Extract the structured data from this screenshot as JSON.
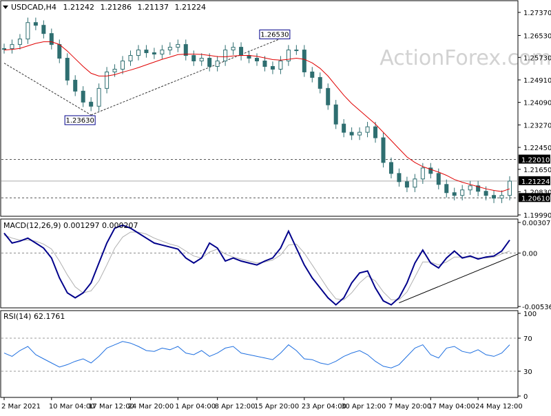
{
  "header": {
    "symbol_tf": "USDCAD,H4",
    "open": "1.21242",
    "high": "1.21286",
    "low": "1.21137",
    "close": "1.21224"
  },
  "watermark": "ActionForex.com",
  "colors": {
    "candle": "#2e6e70",
    "ma": "#e00000",
    "macd_main": "#00008b",
    "macd_signal": "#b0b0b0",
    "rsi": "#1e6fe0",
    "grid": "#9a9a9a",
    "label_bg": "#000000"
  },
  "chart_data": [
    {
      "type": "candlestick",
      "title": "USDCAD,H4",
      "ylim": [
        1.1999,
        1.2737
      ],
      "y_ticks": [
        "1.27370",
        "1.26530",
        "1.25730",
        "1.24910",
        "1.24090",
        "1.23270",
        "1.22450",
        "1.21650",
        "1.20830",
        "1.19990"
      ],
      "price_axis_labels": [
        "1.22010",
        "1.21224",
        "1.20610"
      ],
      "horizontal_levels": [
        1.2201,
        1.2061
      ],
      "current_price": 1.21224,
      "annotations": [
        {
          "text": "1.26530",
          "value": 1.2653,
          "x": 36
        },
        {
          "text": "1.23630",
          "value": 1.2363,
          "x": 11
        }
      ],
      "trendlines": [
        {
          "from": {
            "x": 0,
            "y": 1.2552
          },
          "to": {
            "x": 11,
            "y": 1.2363
          }
        },
        {
          "from": {
            "x": 11,
            "y": 1.2363
          },
          "to": {
            "x": 36,
            "y": 1.2653
          }
        }
      ],
      "close_series": [
        1.2605,
        1.262,
        1.264,
        1.27,
        1.269,
        1.266,
        1.262,
        1.257,
        1.249,
        1.245,
        1.241,
        1.2395,
        1.246,
        1.252,
        1.253,
        1.256,
        1.258,
        1.26,
        1.259,
        1.2585,
        1.26,
        1.261,
        1.262,
        1.258,
        1.256,
        1.257,
        1.254,
        1.256,
        1.26,
        1.261,
        1.258,
        1.257,
        1.256,
        1.254,
        1.253,
        1.256,
        1.26,
        1.26,
        1.252,
        1.25,
        1.246,
        1.24,
        1.233,
        1.23,
        1.229,
        1.23,
        1.232,
        1.228,
        1.219,
        1.215,
        1.212,
        1.21,
        1.213,
        1.217,
        1.215,
        1.211,
        1.208,
        1.207,
        1.209,
        1.2105,
        1.2085,
        1.207,
        1.206,
        1.207,
        1.2122
      ],
      "ma_series": [
        1.26,
        1.2602,
        1.2606,
        1.2615,
        1.2624,
        1.263,
        1.263,
        1.262,
        1.2596,
        1.2568,
        1.254,
        1.2515,
        1.2505,
        1.2505,
        1.251,
        1.2519,
        1.2527,
        1.2536,
        1.2546,
        1.2556,
        1.2566,
        1.2574,
        1.2583,
        1.2585,
        1.2585,
        1.2584,
        1.258,
        1.2576,
        1.2575,
        1.2578,
        1.258,
        1.258,
        1.2577,
        1.2571,
        1.2565,
        1.2563,
        1.2566,
        1.257,
        1.2566,
        1.2553,
        1.2533,
        1.2505,
        1.247,
        1.2435,
        1.2405,
        1.238,
        1.2355,
        1.233,
        1.23,
        1.227,
        1.224,
        1.221,
        1.219,
        1.2175,
        1.2165,
        1.2155,
        1.2143,
        1.2128,
        1.2118,
        1.211,
        1.2102,
        1.2094,
        1.2088,
        1.2084,
        1.2094
      ]
    },
    {
      "type": "line",
      "title": "MACD(12,26,9) 0.001297 0.000207",
      "ylim": [
        -0.005369,
        0.003072
      ],
      "y_ticks": [
        "0.003072",
        "0.00",
        "-0.005369"
      ],
      "zero_line": 0.0,
      "trendline": {
        "from": {
          "x": 50,
          "y": -0.005
        },
        "to": {
          "x": 64,
          "y": -0.0001
        }
      },
      "series": [
        {
          "name": "MACD",
          "values": [
            0.002,
            0.001,
            0.0012,
            0.0015,
            0.001,
            0.0005,
            -0.0005,
            -0.0025,
            -0.004,
            -0.0045,
            -0.004,
            -0.003,
            -0.001,
            0.001,
            0.0025,
            0.0028,
            0.0025,
            0.002,
            0.0015,
            0.001,
            0.0008,
            0.0006,
            0.0004,
            -0.0005,
            -0.001,
            -0.0005,
            0.001,
            0.0005,
            -0.0008,
            -0.0005,
            -0.0008,
            -0.001,
            -0.0012,
            -0.0008,
            -0.0005,
            0.0005,
            0.0022,
            0.0005,
            -0.0012,
            -0.0025,
            -0.0035,
            -0.0045,
            -0.0052,
            -0.0045,
            -0.003,
            -0.002,
            -0.0018,
            -0.0035,
            -0.0048,
            -0.0052,
            -0.0045,
            -0.003,
            -0.001,
            0.0003,
            -0.001,
            -0.0015,
            -0.0005,
            0.0002,
            -0.0005,
            -0.0003,
            -0.0006,
            -0.0004,
            -0.0003,
            0.0002,
            0.0013
          ]
        },
        {
          "name": "Signal",
          "values": [
            0.0018,
            0.0015,
            0.0013,
            0.0013,
            0.0012,
            0.0009,
            0.0004,
            -0.0008,
            -0.0022,
            -0.0034,
            -0.004,
            -0.0038,
            -0.0028,
            -0.0012,
            0.0005,
            0.0016,
            0.0021,
            0.0021,
            0.0019,
            0.0015,
            0.0012,
            0.0009,
            0.0007,
            0.0002,
            -0.0003,
            -0.0005,
            0.0001,
            0.0004,
            -0.0001,
            -0.0004,
            -0.0006,
            -0.0008,
            -0.001,
            -0.0009,
            -0.0007,
            -0.0002,
            0.0008,
            0.0009,
            0.0,
            -0.0012,
            -0.0024,
            -0.0036,
            -0.0046,
            -0.0047,
            -0.004,
            -0.003,
            -0.0023,
            -0.0028,
            -0.0039,
            -0.0047,
            -0.0047,
            -0.0039,
            -0.0024,
            -0.0009,
            -0.0009,
            -0.0012,
            -0.0009,
            -0.0004,
            -0.0004,
            -0.0004,
            -0.0005,
            -0.0005,
            -0.0004,
            -0.0001,
            0.0002
          ]
        }
      ]
    },
    {
      "type": "line",
      "title": "RSI(14) 62.1761",
      "ylim": [
        0,
        100
      ],
      "y_ticks": [
        "100",
        "70",
        "30",
        "0"
      ],
      "levels": [
        70,
        30
      ],
      "series": [
        {
          "name": "RSI(14)",
          "values": [
            52,
            48,
            55,
            60,
            50,
            45,
            40,
            35,
            38,
            42,
            45,
            40,
            48,
            58,
            62,
            66,
            64,
            60,
            55,
            54,
            58,
            56,
            60,
            52,
            50,
            55,
            48,
            52,
            58,
            60,
            52,
            50,
            48,
            46,
            44,
            52,
            62,
            55,
            45,
            44,
            40,
            38,
            42,
            48,
            52,
            55,
            50,
            42,
            36,
            34,
            38,
            48,
            58,
            62,
            50,
            46,
            58,
            60,
            54,
            52,
            56,
            50,
            48,
            52,
            62
          ]
        }
      ]
    }
  ],
  "x_axis": {
    "labels": [
      "2 Mar 2021",
      "10 Mar 04:00",
      "17 Mar 12:00",
      "24 Mar 20:00",
      "1 Apr 04:00",
      "8 Apr 12:00",
      "15 Apr 20:00",
      "23 Apr 04:00",
      "30 Apr 12:00",
      "7 May 20:00",
      "17 May 04:00",
      "24 May 12:00"
    ],
    "label_index": [
      0,
      6,
      11,
      16,
      22,
      27,
      32,
      38,
      43,
      49,
      54,
      60
    ]
  }
}
